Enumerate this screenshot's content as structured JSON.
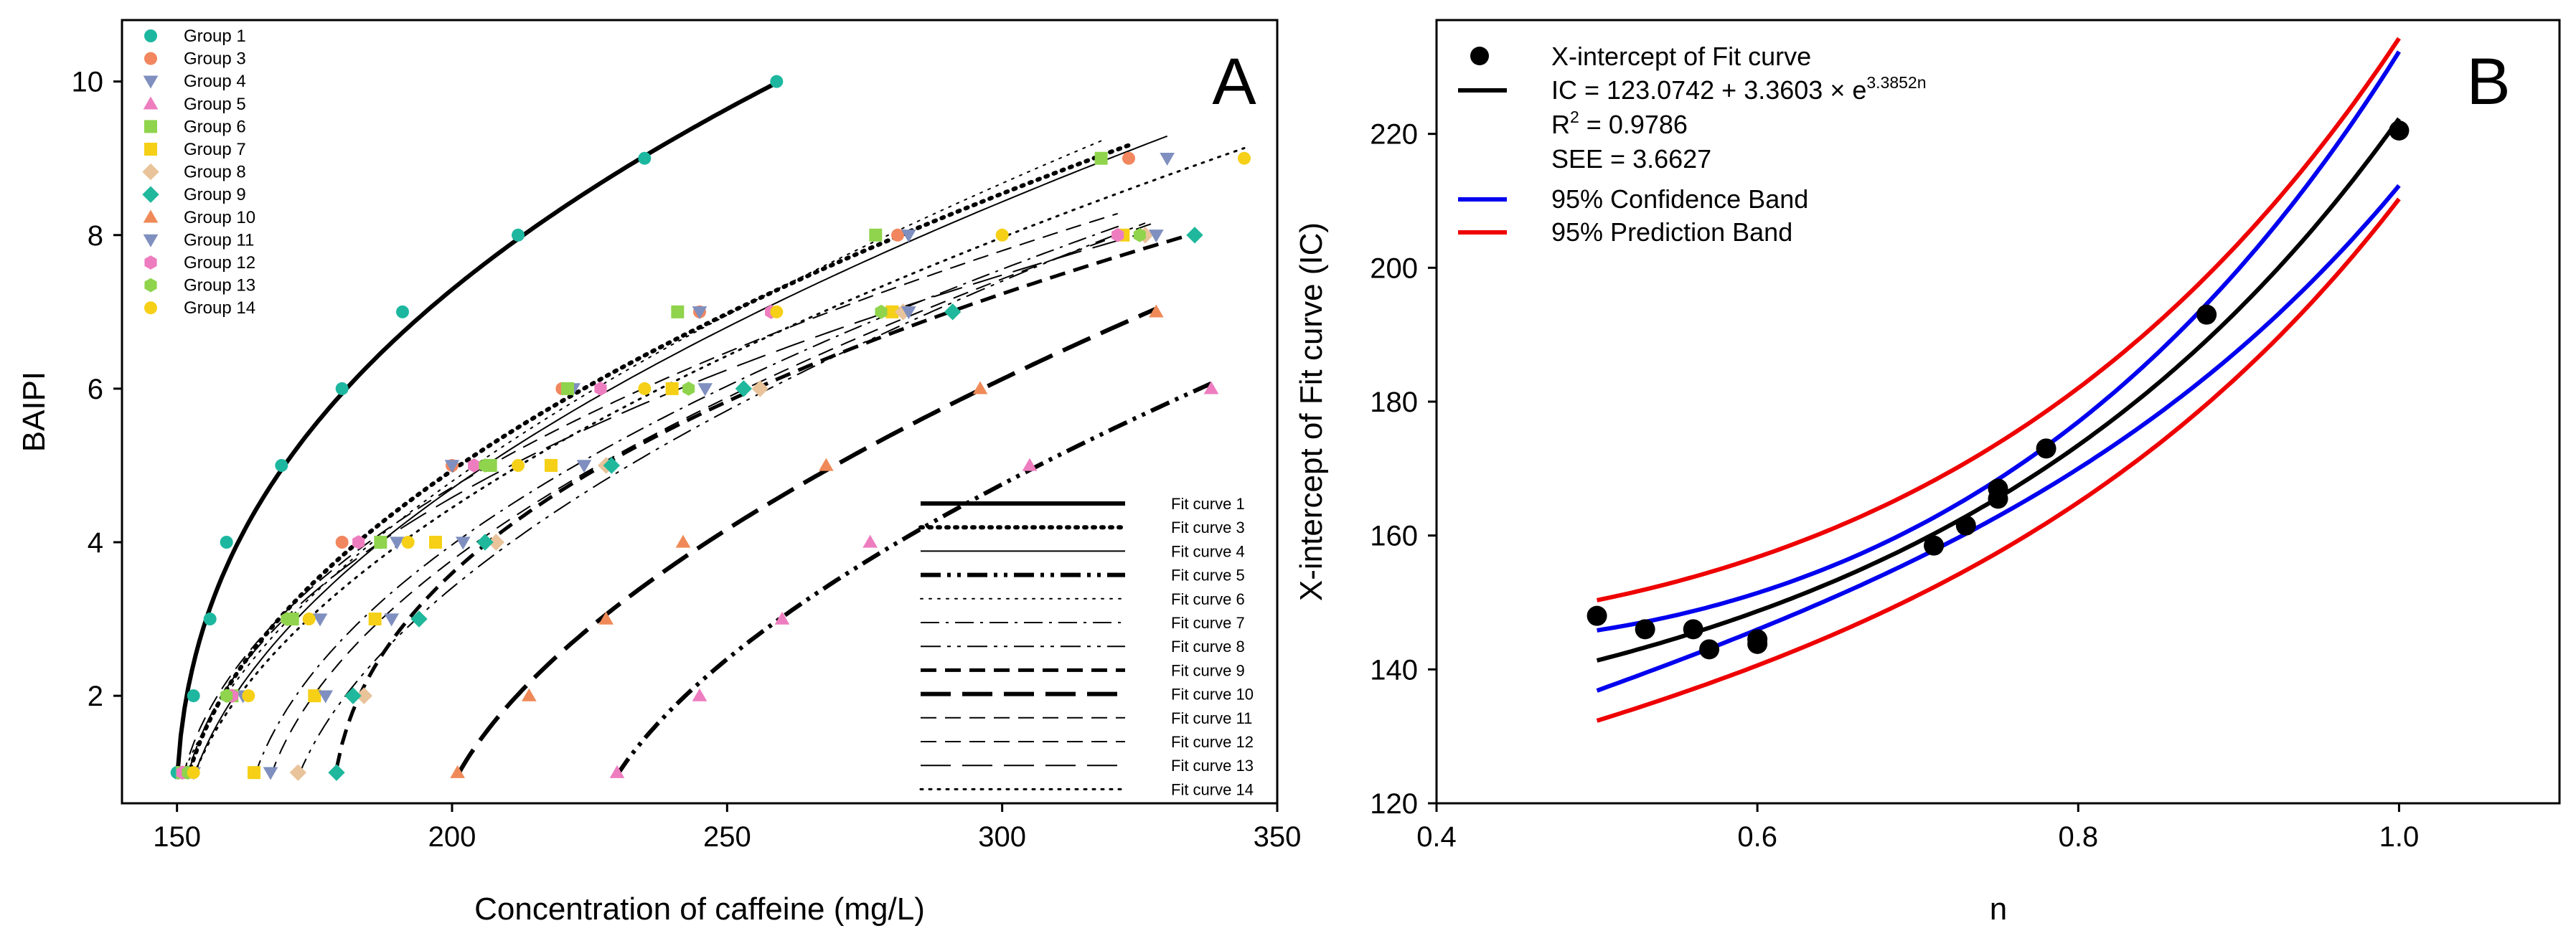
{
  "chart_data": [
    {
      "panel": "A",
      "type": "line+scatter",
      "panel_label": "A",
      "xlabel": "Concentration of caffeine (mg/L)",
      "ylabel": "BAIPI",
      "xlim": [
        140,
        350
      ],
      "ylim": [
        0.6,
        10.8
      ],
      "xticks": [
        150,
        200,
        250,
        300,
        350
      ],
      "yticks": [
        2,
        4,
        6,
        8,
        10
      ],
      "series": [
        {
          "name": "Group 1",
          "marker": "circle",
          "color": "#1db7a0",
          "fit": "Fit curve 1",
          "dash": "solid",
          "width": 6,
          "x": [
            150,
            153,
            156,
            159,
            169,
            180,
            191,
            212,
            235,
            259
          ],
          "y": [
            1,
            2,
            3,
            4,
            5,
            6,
            7,
            8,
            9,
            10
          ]
        },
        {
          "name": "Group 3",
          "marker": "circle",
          "color": "#f2865e",
          "fit": "Fit curve 3",
          "dash": "dot",
          "width": 6,
          "x": [
            152,
            160,
            171,
            180,
            200,
            220,
            245,
            281,
            323
          ],
          "y": [
            1,
            2,
            3,
            4,
            5,
            6,
            7,
            8,
            9
          ]
        },
        {
          "name": "Group 4",
          "marker": "triangle-down",
          "color": "#7f8fbf",
          "fit": "Fit curve 4",
          "dash": "solid",
          "width": 2,
          "x": [
            153,
            162,
            176,
            190,
            200,
            222,
            245,
            283,
            330
          ],
          "y": [
            1,
            2,
            3,
            4,
            5,
            6,
            7,
            8,
            9
          ]
        },
        {
          "name": "Group 5",
          "marker": "triangle",
          "color": "#ee7dc0",
          "fit": "Fit curve 5",
          "dash": "dashdotdot",
          "width": 6,
          "x": [
            230,
            245,
            260,
            276,
            305,
            338
          ],
          "y": [
            1,
            2,
            3,
            4,
            5,
            6
          ]
        },
        {
          "name": "Group 6",
          "marker": "square",
          "color": "#8fd44c",
          "fit": "Fit curve 6",
          "dash": "dot",
          "width": 2,
          "x": [
            151,
            160,
            171,
            187,
            207,
            221,
            241,
            277,
            318
          ],
          "y": [
            1,
            2,
            3,
            4,
            5,
            6,
            7,
            8,
            9
          ]
        },
        {
          "name": "Group 7",
          "marker": "square",
          "color": "#f5d016",
          "fit": "Fit curve 7",
          "dash": "dashdot",
          "width": 2,
          "x": [
            164,
            175,
            186,
            197,
            218,
            240,
            280,
            322
          ],
          "y": [
            1,
            2,
            3,
            4,
            5,
            6,
            7,
            8
          ]
        },
        {
          "name": "Group 8",
          "marker": "diamond",
          "color": "#e9c39a",
          "fit": "Fit curve 8",
          "dash": "dashdotdot",
          "width": 2,
          "x": [
            172,
            184,
            194,
            208,
            228,
            256,
            282,
            326
          ],
          "y": [
            1,
            2,
            3,
            4,
            5,
            6,
            7,
            8
          ]
        },
        {
          "name": "Group 9",
          "marker": "diamond",
          "color": "#1fb89c",
          "fit": "Fit curve 9",
          "dash": "dash",
          "width": 5,
          "x": [
            179,
            182,
            194,
            206,
            229,
            253,
            291,
            335
          ],
          "y": [
            1,
            2,
            3,
            4,
            5,
            6,
            7,
            8
          ]
        },
        {
          "name": "Group 10",
          "marker": "triangle",
          "color": "#ef8a58",
          "fit": "Fit curve 10",
          "dash": "longdash",
          "width": 6,
          "x": [
            201,
            214,
            228,
            242,
            268,
            296,
            328
          ],
          "y": [
            1,
            2,
            3,
            4,
            5,
            6,
            7
          ]
        },
        {
          "name": "Group 11",
          "marker": "triangle-down",
          "color": "#7f8fbf",
          "fit": "Fit curve 11",
          "dash": "dash",
          "width": 2,
          "x": [
            167,
            177,
            189,
            202,
            224,
            246,
            283,
            328
          ],
          "y": [
            1,
            2,
            3,
            4,
            5,
            6,
            7,
            8
          ]
        },
        {
          "name": "Group 12",
          "marker": "hexagon",
          "color": "#ee7dc0",
          "fit": "Fit curve 12",
          "dash": "dash",
          "width": 2,
          "x": [
            151,
            160,
            170,
            183,
            204,
            227,
            258,
            321
          ],
          "y": [
            1,
            2,
            3,
            4,
            5,
            6,
            7,
            8
          ]
        },
        {
          "name": "Group 13",
          "marker": "hexagon",
          "color": "#8fd44c",
          "fit": "Fit curve 13",
          "dash": "longdash",
          "width": 2,
          "x": [
            152,
            159,
            170,
            187,
            206,
            243,
            278,
            325
          ],
          "y": [
            1,
            2,
            3,
            4,
            5,
            6,
            7,
            8
          ]
        },
        {
          "name": "Group 14",
          "marker": "circle",
          "color": "#f5d016",
          "fit": "Fit curve 14",
          "dash": "dot",
          "width": 3,
          "x": [
            153,
            163,
            174,
            192,
            212,
            235,
            259,
            300,
            344
          ],
          "y": [
            1,
            2,
            3,
            4,
            5,
            6,
            7,
            8,
            9
          ]
        }
      ]
    },
    {
      "panel": "B",
      "type": "line+scatter",
      "panel_label": "B",
      "xlabel": "n",
      "ylabel": "X-intercept of Fit curve (IC)",
      "xlim": [
        0.4,
        1.1
      ],
      "ylim": [
        120,
        237
      ],
      "xticks": [
        0.4,
        0.6,
        0.8,
        1.0
      ],
      "xtick_labels": [
        "0.4",
        "0.6",
        "0.8",
        "1.0"
      ],
      "yticks": [
        120,
        140,
        160,
        180,
        200,
        220
      ],
      "fit": {
        "a": 123.0742,
        "b": 3.3603,
        "c": 3.3852,
        "x_range": [
          0.5,
          1.0
        ]
      },
      "points": {
        "name": "X-intercept of Fit curve",
        "x": [
          0.5,
          0.53,
          0.56,
          0.57,
          0.6,
          0.6,
          0.71,
          0.73,
          0.75,
          0.75,
          0.78,
          0.88,
          1.0
        ],
        "y": [
          148,
          146,
          146,
          143,
          144.5,
          143.8,
          158.5,
          161.5,
          165.5,
          167,
          173,
          193,
          220.5
        ]
      },
      "bands": [
        {
          "name": "95% Confidence Band",
          "color": "#0000ee",
          "offsets": [
            4.5,
            2.5,
            10
          ]
        },
        {
          "name": "95% Prediction Band",
          "color": "#ee0000",
          "offsets": [
            9,
            8,
            12
          ]
        }
      ],
      "legend": {
        "points_label": "X-intercept of Fit curve",
        "eq_prefix": "IC = 123.0742 + 3.3603 × e",
        "eq_exponent": "3.3852n",
        "r2_prefix": "R",
        "r2_sup": "2",
        "r2_value": " = 0.9786",
        "see": "SEE = 3.6627",
        "confidence": "95% Confidence Band",
        "prediction": "95% Prediction Band"
      }
    }
  ]
}
